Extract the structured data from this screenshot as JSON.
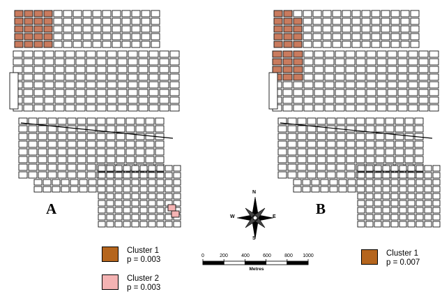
{
  "panels": [
    {
      "letter": "A"
    },
    {
      "letter": "B"
    }
  ],
  "colors": {
    "cluster1": "#b5651d",
    "cluster2": "#f4b3b3",
    "hotspot": "#c97b5e",
    "block_stroke": "#111111",
    "background": "#ffffff"
  },
  "legend_a": [
    {
      "name": "Cluster 1",
      "p": "p = 0.003",
      "color": "#b5651d"
    },
    {
      "name": "Cluster 2",
      "p": "p = 0.003",
      "color": "#f4b3b3"
    }
  ],
  "legend_b": [
    {
      "name": "Cluster 1",
      "p": "p = 0.007",
      "color": "#b5651d"
    }
  ],
  "compass": {
    "n": "N",
    "s": "S",
    "e": "E",
    "w": "W"
  },
  "scale": {
    "ticks": [
      "0",
      "200",
      "400",
      "600",
      "800",
      "1000"
    ],
    "unit": "Metres"
  }
}
